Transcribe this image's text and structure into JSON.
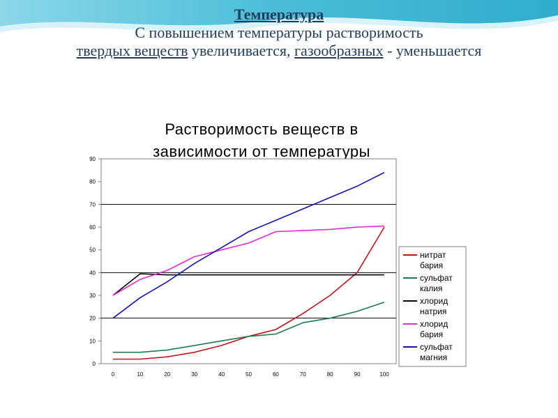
{
  "header": {
    "heading": "Температура",
    "line1": "С повышением температуры растворимость",
    "line2_part1": "твердых веществ",
    "line2_part2": " увеличивается, ",
    "line2_part3": "газообразных",
    "line2_part4": " - уменьшается"
  },
  "colors": {
    "header_wave": "#3bbfd8",
    "header_wave_light": "#a9e3ee",
    "title_text": "#1f3d5a"
  },
  "chart_data": {
    "type": "line",
    "title": "Растворимость веществ в зависимости от температуры",
    "title_lines": [
      "Растворимость веществ в",
      "зависимости от температуры"
    ],
    "xlabel": "",
    "ylabel": "",
    "x": [
      0,
      10,
      20,
      30,
      40,
      50,
      60,
      70,
      80,
      90,
      100
    ],
    "x_tick_labels": [
      "0",
      "10",
      "20",
      "30",
      "40",
      "50",
      "60",
      "70",
      "80",
      "90",
      "100"
    ],
    "y_tick_labels": [
      "0",
      "10",
      "20",
      "30",
      "40",
      "50",
      "60",
      "70",
      "80",
      "90"
    ],
    "ylim": [
      0,
      90
    ],
    "xlim": [
      0,
      100
    ],
    "grid": "horizontal at 20, 40, 70",
    "legend_position": "right",
    "series": [
      {
        "name": "нитрат бария",
        "legend_lines": [
          "нитрат",
          "бария"
        ],
        "color": "#c0141c",
        "values": [
          2,
          2,
          3,
          5,
          8,
          12,
          15,
          22,
          30,
          40,
          60
        ]
      },
      {
        "name": "сульфат калия",
        "legend_lines": [
          "сульфат",
          "калия"
        ],
        "color": "#1e7a4e",
        "values": [
          5,
          5,
          6,
          8,
          10,
          12,
          13,
          18,
          20,
          23,
          27
        ]
      },
      {
        "name": "хлорид натрия",
        "legend_lines": [
          "хлорид",
          "натрия"
        ],
        "color": "#000000",
        "values": [
          30,
          39.5,
          39,
          39,
          39,
          39,
          39,
          39,
          39,
          39,
          39
        ]
      },
      {
        "name": "хлорид бария",
        "legend_lines": [
          "хлорид",
          "бария"
        ],
        "color": "#e02ad6",
        "values": [
          30,
          37,
          41,
          47,
          50,
          53,
          58,
          58.5,
          59,
          60,
          60.5
        ]
      },
      {
        "name": "сульфат магния",
        "legend_lines": [
          "сульфат",
          "магния"
        ],
        "color": "#1414a8",
        "values": [
          20,
          29,
          36,
          44,
          51,
          58,
          63,
          68,
          73,
          78,
          84
        ]
      }
    ]
  }
}
